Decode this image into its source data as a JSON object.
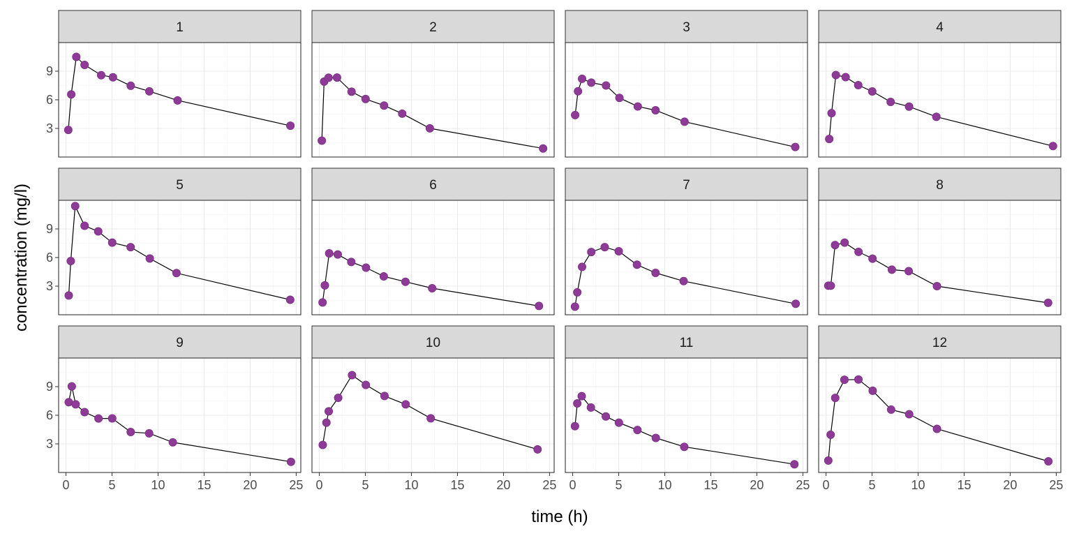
{
  "chart_data": {
    "type": "line",
    "facet_layout": {
      "rows": 3,
      "cols": 4
    },
    "xlabel": "time (h)",
    "ylabel": "concentration (mg/l)",
    "xlim": [
      -0.8,
      25.5
    ],
    "ylim": [
      0,
      12
    ],
    "x_ticks": [
      0,
      5,
      10,
      15,
      20,
      25
    ],
    "x_tick_labels": [
      "0",
      "5",
      "10",
      "15",
      "20",
      "25"
    ],
    "y_ticks": [
      3,
      6,
      9
    ],
    "y_tick_labels": [
      "3",
      "6",
      "9"
    ],
    "colors": {
      "point": "#8e3b97",
      "line": "#000000",
      "strip": "#d9d9d9"
    },
    "panels": [
      {
        "label": "1",
        "x": [
          0.25,
          0.57,
          1.12,
          2.02,
          3.82,
          5.1,
          7.03,
          9.05,
          12.12,
          24.37
        ],
        "y": [
          2.84,
          6.57,
          10.5,
          9.66,
          8.58,
          8.36,
          7.47,
          6.89,
          5.94,
          3.28
        ]
      },
      {
        "label": "2",
        "x": [
          0.27,
          0.52,
          1.0,
          1.92,
          3.5,
          5.02,
          7.03,
          9.0,
          12.0,
          24.3
        ],
        "y": [
          1.72,
          7.91,
          8.31,
          8.33,
          6.85,
          6.08,
          5.4,
          4.55,
          3.01,
          0.9
        ]
      },
      {
        "label": "3",
        "x": [
          0.27,
          0.58,
          1.02,
          2.02,
          3.62,
          5.08,
          7.07,
          9.0,
          12.15,
          24.17
        ],
        "y": [
          4.4,
          6.9,
          8.2,
          7.8,
          7.5,
          6.2,
          5.3,
          4.9,
          3.7,
          1.05
        ]
      },
      {
        "label": "4",
        "x": [
          0.35,
          0.6,
          1.07,
          2.13,
          3.5,
          5.02,
          7.02,
          9.02,
          11.98,
          24.65
        ],
        "y": [
          1.89,
          4.6,
          8.6,
          8.38,
          7.54,
          6.88,
          5.78,
          5.29,
          4.22,
          1.15
        ]
      },
      {
        "label": "5",
        "x": [
          0.3,
          0.52,
          1.0,
          2.02,
          3.5,
          5.02,
          7.02,
          9.1,
          12.0,
          24.35
        ],
        "y": [
          2.02,
          5.63,
          11.4,
          9.33,
          8.74,
          7.56,
          7.09,
          5.9,
          4.37,
          1.57
        ]
      },
      {
        "label": "6",
        "x": [
          0.35,
          0.6,
          1.07,
          2.0,
          3.47,
          5.07,
          7.0,
          9.35,
          12.25,
          23.85
        ],
        "y": [
          1.29,
          3.08,
          6.44,
          6.32,
          5.53,
          4.94,
          4.02,
          3.46,
          2.78,
          0.92
        ]
      },
      {
        "label": "7",
        "x": [
          0.25,
          0.5,
          1.02,
          2.02,
          3.48,
          5.0,
          6.98,
          9.0,
          12.05,
          24.22
        ],
        "y": [
          0.85,
          2.35,
          5.02,
          6.58,
          7.09,
          6.66,
          5.25,
          4.39,
          3.53,
          1.15
        ]
      },
      {
        "label": "8",
        "x": [
          0.25,
          0.52,
          0.98,
          2.02,
          3.53,
          5.05,
          7.15,
          8.98,
          12.05,
          24.12
        ],
        "y": [
          3.05,
          3.05,
          7.31,
          7.56,
          6.59,
          5.88,
          4.73,
          4.57,
          3.0,
          1.25
        ]
      },
      {
        "label": "9",
        "x": [
          0.3,
          0.63,
          1.05,
          2.02,
          3.53,
          5.02,
          7.03,
          9.03,
          11.6,
          24.43
        ],
        "y": [
          7.37,
          9.03,
          7.14,
          6.33,
          5.66,
          5.67,
          4.24,
          4.11,
          3.16,
          1.12
        ]
      },
      {
        "label": "10",
        "x": [
          0.37,
          0.77,
          1.02,
          2.05,
          3.55,
          5.05,
          7.08,
          9.38,
          12.1,
          23.7
        ],
        "y": [
          2.89,
          5.22,
          6.41,
          7.83,
          10.21,
          9.18,
          8.02,
          7.14,
          5.68,
          2.42
        ]
      },
      {
        "label": "11",
        "x": [
          0.25,
          0.5,
          0.98,
          1.98,
          3.6,
          5.02,
          7.03,
          9.03,
          12.12,
          24.08
        ],
        "y": [
          4.86,
          7.24,
          8.0,
          6.81,
          5.87,
          5.22,
          4.45,
          3.62,
          2.69,
          0.86
        ]
      },
      {
        "label": "12",
        "x": [
          0.25,
          0.5,
          1.0,
          2.0,
          3.52,
          5.07,
          7.07,
          9.03,
          12.05,
          24.15
        ],
        "y": [
          1.25,
          3.96,
          7.82,
          9.72,
          9.75,
          8.57,
          6.59,
          6.11,
          4.57,
          1.17
        ]
      }
    ]
  }
}
